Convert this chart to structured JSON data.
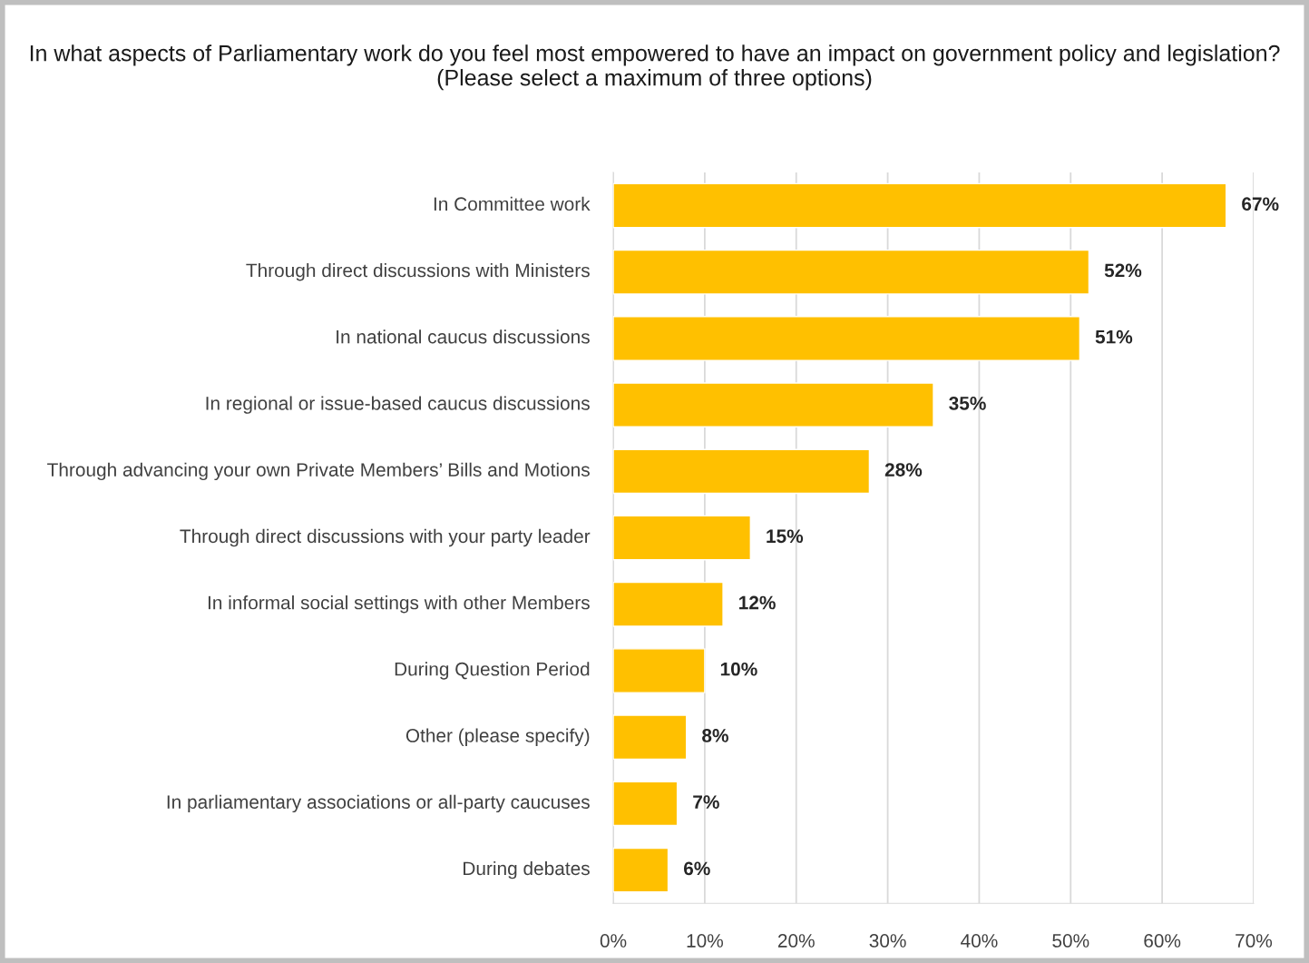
{
  "chart_data": {
    "type": "bar",
    "orientation": "horizontal",
    "title": "In what aspects of Parliamentary work do you feel most empowered to have an impact on government policy and legislation? (Please select a maximum of three options)",
    "categories": [
      "In Committee work",
      "Through direct discussions with Ministers",
      "In national caucus discussions",
      "In regional or issue-based caucus discussions",
      "Through advancing your own Private Members’ Bills and Motions",
      "Through direct discussions with your party leader",
      "In informal social settings with other Members",
      "During Question Period",
      "Other (please specify)",
      "In parliamentary associations or all-party caucuses",
      "During debates"
    ],
    "values": [
      67,
      52,
      51,
      35,
      28,
      15,
      12,
      10,
      8,
      7,
      6
    ],
    "value_labels": [
      "67%",
      "52%",
      "51%",
      "35%",
      "28%",
      "15%",
      "12%",
      "10%",
      "8%",
      "7%",
      "6%"
    ],
    "color": "#ffc000",
    "xlim": [
      0,
      70
    ],
    "xticks": [
      {
        "value": 0,
        "label": "0%"
      },
      {
        "value": 10,
        "label": "10%"
      },
      {
        "value": 20,
        "label": "20%"
      },
      {
        "value": 30,
        "label": "30%"
      },
      {
        "value": 40,
        "label": "40%"
      },
      {
        "value": 50,
        "label": "50%"
      },
      {
        "value": 60,
        "label": "60%"
      },
      {
        "value": 70,
        "label": "70%"
      }
    ],
    "grid": "x",
    "legend": false
  }
}
